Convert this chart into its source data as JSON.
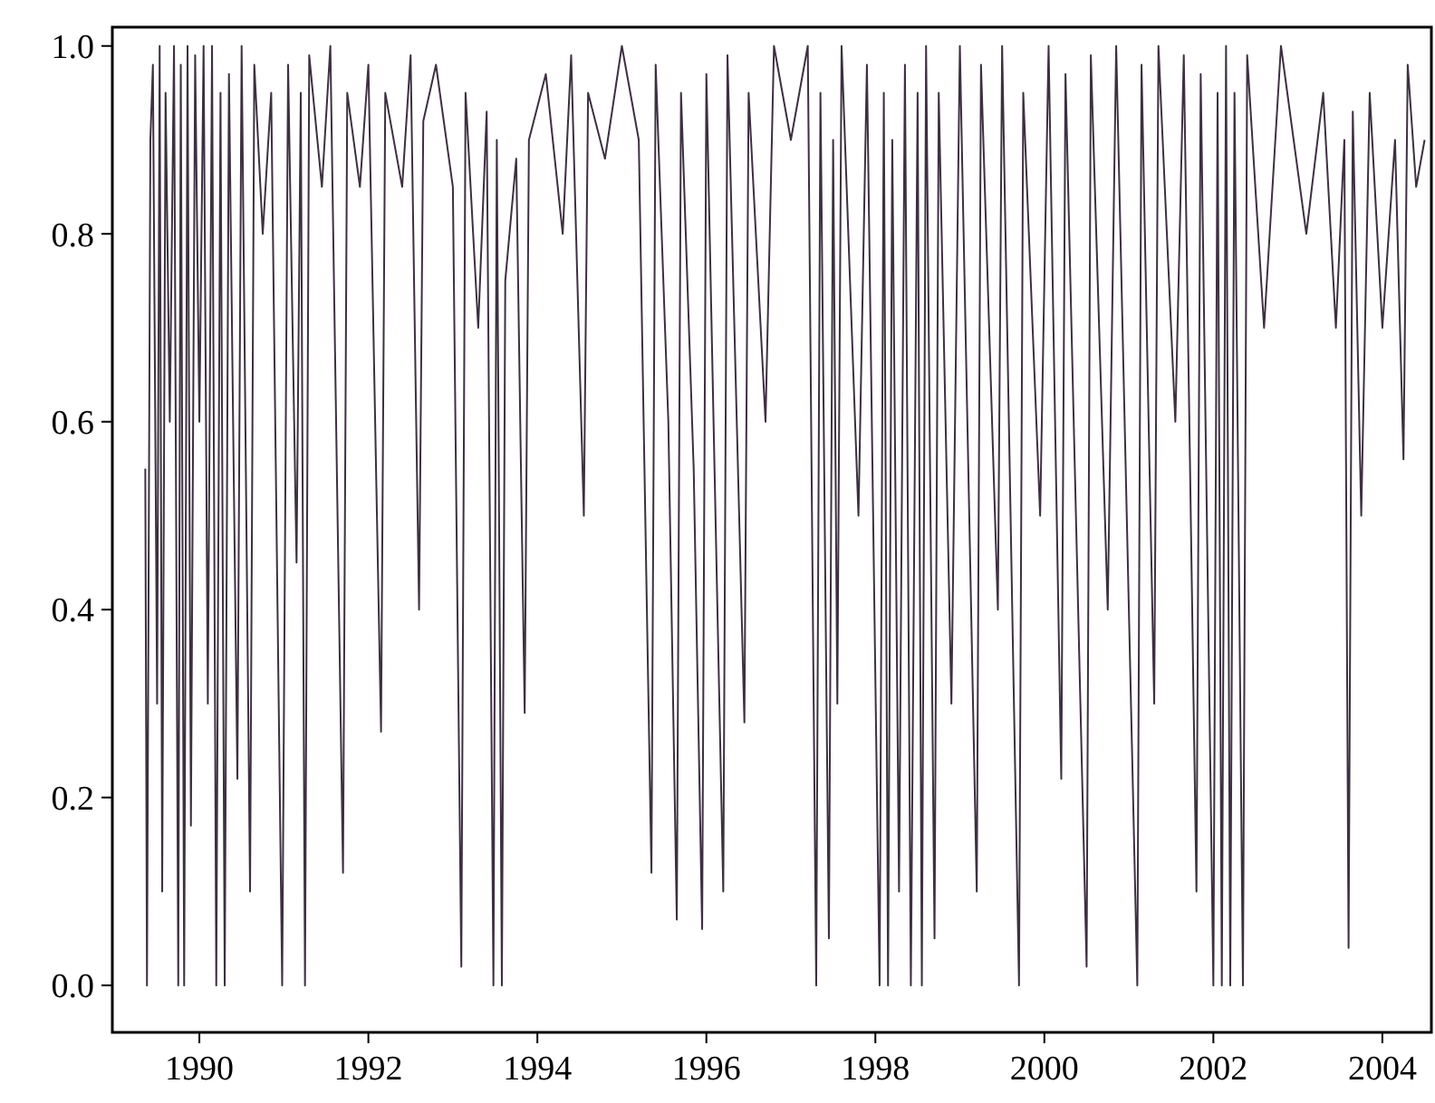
{
  "chart_data": {
    "type": "line",
    "xlim": [
      1988.97,
      2004.58
    ],
    "xticks": [
      1990,
      1992,
      1994,
      1996,
      1998,
      2000,
      2002,
      2004
    ],
    "ylim": [
      -0.05,
      1.02
    ],
    "yticks": [
      {
        "value": 0,
        "label": "0.0"
      },
      0.2,
      0.4,
      0.6,
      0.8,
      {
        "value": 1,
        "label": "1.0"
      }
    ],
    "grid": false,
    "series": [
      {
        "color": "#3d3040",
        "x": [
          1989.36,
          1989.38,
          1989.42,
          1989.45,
          1989.5,
          1989.53,
          1989.56,
          1989.6,
          1989.65,
          1989.7,
          1989.75,
          1989.78,
          1989.82,
          1989.86,
          1989.9,
          1989.95,
          1990.0,
          1990.05,
          1990.1,
          1990.15,
          1990.2,
          1990.25,
          1990.3,
          1990.35,
          1990.45,
          1990.5,
          1990.6,
          1990.65,
          1990.75,
          1990.85,
          1990.98,
          1991.05,
          1991.15,
          1991.2,
          1991.25,
          1991.3,
          1991.45,
          1991.55,
          1991.7,
          1991.75,
          1991.9,
          1992.0,
          1992.15,
          1992.2,
          1992.4,
          1992.5,
          1992.6,
          1992.65,
          1992.8,
          1993.0,
          1993.1,
          1993.15,
          1993.3,
          1993.4,
          1993.48,
          1993.52,
          1993.58,
          1993.62,
          1993.75,
          1993.85,
          1993.9,
          1994.1,
          1994.3,
          1994.4,
          1994.55,
          1994.6,
          1994.8,
          1995.0,
          1995.2,
          1995.35,
          1995.4,
          1995.55,
          1995.65,
          1995.7,
          1995.85,
          1995.95,
          1996.0,
          1996.2,
          1996.25,
          1996.45,
          1996.5,
          1996.7,
          1996.8,
          1997.0,
          1997.2,
          1997.3,
          1997.35,
          1997.45,
          1997.5,
          1997.55,
          1997.6,
          1997.8,
          1997.9,
          1998.05,
          1998.1,
          1998.15,
          1998.2,
          1998.28,
          1998.35,
          1998.42,
          1998.5,
          1998.55,
          1998.6,
          1998.7,
          1998.75,
          1998.9,
          1999.0,
          1999.2,
          1999.25,
          1999.45,
          1999.5,
          1999.7,
          1999.75,
          1999.95,
          2000.05,
          2000.2,
          2000.25,
          2000.5,
          2000.55,
          2000.75,
          2000.85,
          2001.1,
          2001.15,
          2001.3,
          2001.35,
          2001.55,
          2001.65,
          2001.8,
          2001.85,
          2002.0,
          2002.05,
          2002.1,
          2002.15,
          2002.2,
          2002.25,
          2002.35,
          2002.4,
          2002.6,
          2002.8,
          2003.1,
          2003.3,
          2003.45,
          2003.55,
          2003.6,
          2003.65,
          2003.75,
          2003.85,
          2004.0,
          2004.15,
          2004.25,
          2004.3,
          2004.4,
          2004.5
        ],
        "values": [
          0.55,
          0.0,
          0.9,
          0.98,
          0.3,
          1.0,
          0.1,
          0.95,
          0.6,
          1.0,
          0.0,
          0.98,
          0.0,
          1.0,
          0.17,
          0.99,
          0.6,
          1.0,
          0.3,
          1.0,
          0.0,
          0.95,
          0.0,
          0.97,
          0.22,
          1.0,
          0.1,
          0.98,
          0.8,
          0.95,
          0.0,
          0.98,
          0.45,
          0.95,
          0.0,
          0.99,
          0.85,
          1.0,
          0.12,
          0.95,
          0.85,
          0.98,
          0.27,
          0.95,
          0.85,
          0.99,
          0.4,
          0.92,
          0.98,
          0.85,
          0.02,
          0.95,
          0.7,
          0.93,
          0.0,
          0.9,
          0.0,
          0.75,
          0.88,
          0.29,
          0.9,
          0.97,
          0.8,
          0.99,
          0.5,
          0.95,
          0.88,
          1.0,
          0.9,
          0.12,
          0.98,
          0.6,
          0.07,
          0.95,
          0.55,
          0.06,
          0.97,
          0.1,
          0.99,
          0.28,
          0.95,
          0.6,
          1.0,
          0.9,
          1.0,
          0.0,
          0.95,
          0.05,
          0.9,
          0.3,
          1.0,
          0.5,
          0.98,
          0.0,
          0.95,
          0.0,
          0.9,
          0.1,
          0.98,
          0.0,
          0.95,
          0.0,
          1.0,
          0.05,
          0.95,
          0.3,
          1.0,
          0.1,
          0.98,
          0.4,
          1.0,
          0.0,
          0.95,
          0.5,
          1.0,
          0.22,
          0.97,
          0.02,
          0.99,
          0.4,
          1.0,
          0.0,
          0.98,
          0.3,
          1.0,
          0.6,
          0.99,
          0.1,
          0.97,
          0.0,
          0.95,
          0.0,
          1.0,
          0.0,
          0.95,
          0.0,
          0.99,
          0.7,
          1.0,
          0.8,
          0.95,
          0.7,
          0.9,
          0.04,
          0.93,
          0.5,
          0.95,
          0.7,
          0.9,
          0.56,
          0.98,
          0.85,
          0.9
        ]
      }
    ]
  }
}
